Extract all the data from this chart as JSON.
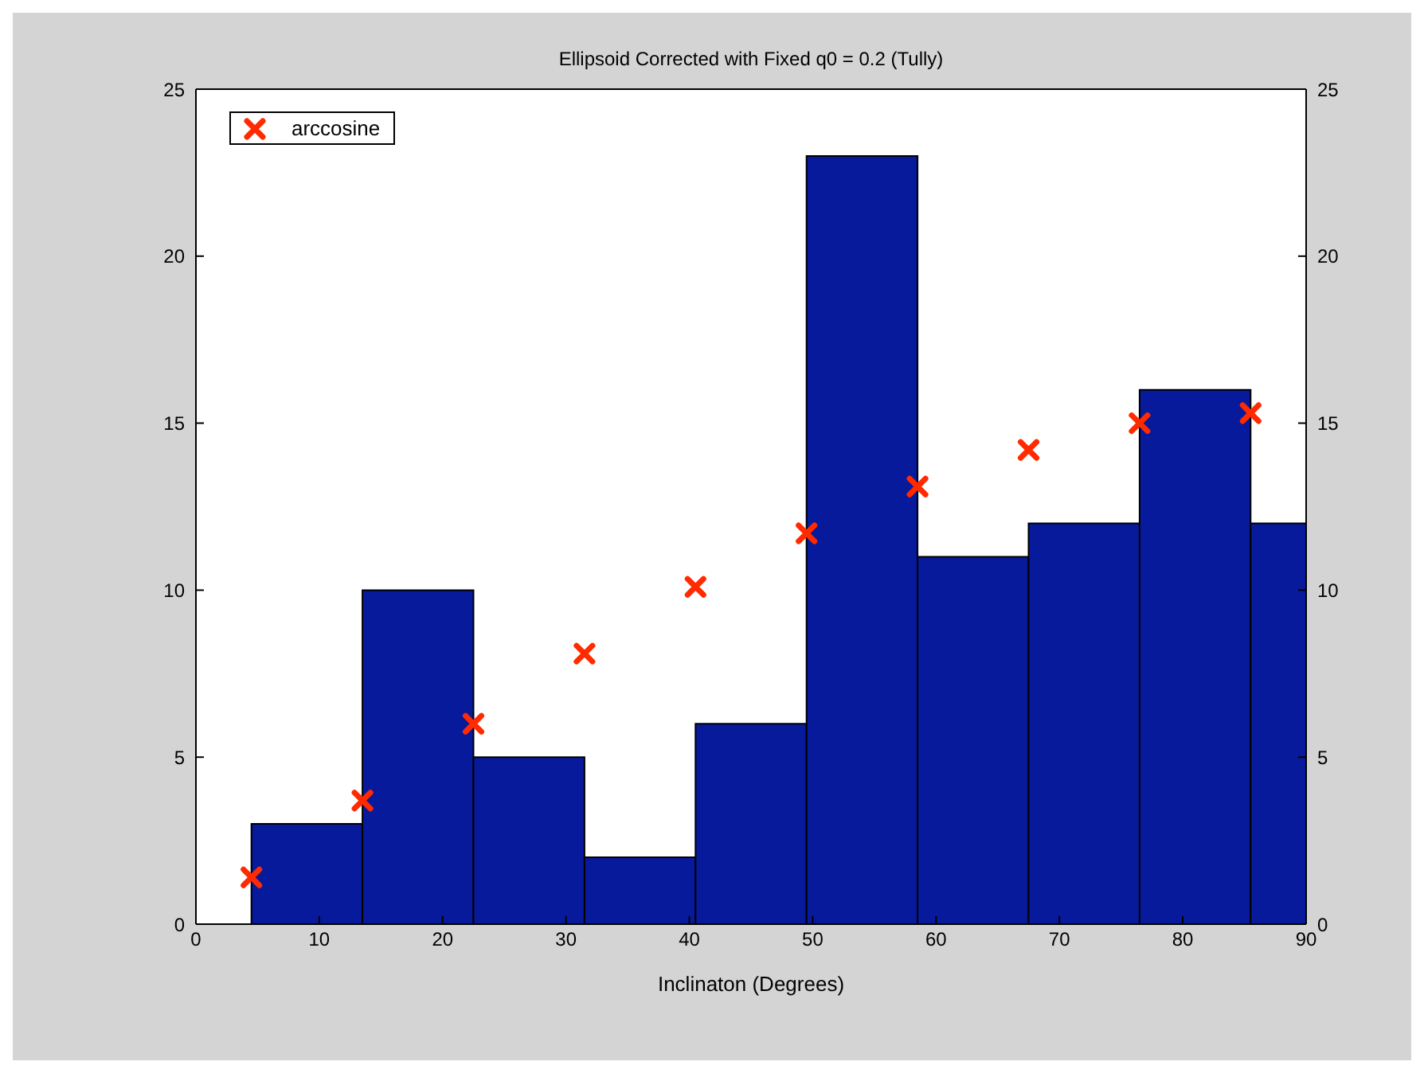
{
  "chart_data": {
    "type": "histogram",
    "title": "Ellipsoid Corrected with Fixed q0 = 0.2 (Tully)",
    "xlabel": "Inclinaton (Degrees)",
    "bins": [
      4.5,
      13.5,
      22.5,
      31.5,
      40.5,
      49.5,
      58.5,
      67.5,
      76.5,
      85.5,
      90
    ],
    "values": [
      3,
      10,
      5,
      2,
      6,
      23,
      11,
      12,
      16,
      12
    ],
    "color": "#081a9c",
    "series": [
      {
        "type": "scatter",
        "name": "arccosine",
        "color": "#ff2a00",
        "marker": "cross",
        "x": [
          4.5,
          13.5,
          22.5,
          31.5,
          40.5,
          49.5,
          58.5,
          67.5,
          76.5,
          85.5
        ],
        "values": [
          1.4,
          3.7,
          6.0,
          8.1,
          10.1,
          11.7,
          13.1,
          14.2,
          15.0,
          15.3
        ]
      }
    ],
    "xlim": [
      0,
      90
    ],
    "xticks": [
      0,
      10,
      20,
      30,
      40,
      50,
      60,
      70,
      80,
      90
    ],
    "ylim": [
      0,
      25
    ],
    "yticks": [
      0,
      5,
      10,
      15,
      20,
      25
    ],
    "y2lim": [
      0,
      25
    ],
    "y2ticks": [
      0,
      5,
      10,
      15,
      20,
      25
    ],
    "legend": "top left"
  }
}
